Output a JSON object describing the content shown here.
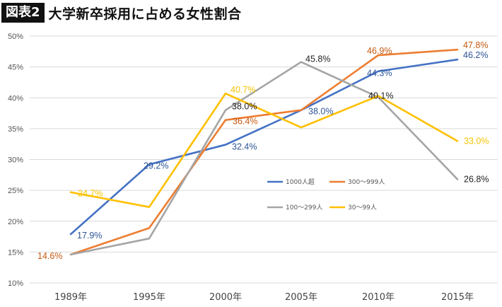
{
  "header": {
    "badge": "図表2",
    "title": "大学新卒採用に占める女性割合"
  },
  "chart_data": {
    "type": "line",
    "title": "大学新卒採用に占める女性割合",
    "categories": [
      "1989年",
      "1995年",
      "2000年",
      "2005年",
      "2010年",
      "2015年"
    ],
    "ylim": [
      10,
      50
    ],
    "yticks": [
      "10%",
      "15%",
      "20%",
      "25%",
      "30%",
      "35%",
      "40%",
      "45%",
      "50%"
    ],
    "grid": true,
    "legend_position": "center-right",
    "series": [
      {
        "name": "1000人超",
        "color": "#4472C4",
        "values": [
          17.9,
          29.2,
          32.4,
          38.0,
          44.3,
          46.2
        ],
        "labels": [
          "17.9%",
          "29.2%",
          "32.4%",
          "38.0%",
          "44.3%",
          "46.2%"
        ]
      },
      {
        "name": "300〜999人",
        "color": "#ED7D31",
        "values": [
          14.6,
          18.9,
          36.4,
          38.0,
          46.9,
          47.8
        ],
        "labels": [
          "14.6%",
          "",
          "36.4%",
          "",
          "46.9%",
          "47.8%"
        ]
      },
      {
        "name": "100〜299人",
        "color": "#A5A5A5",
        "values": [
          14.6,
          17.2,
          38.0,
          45.8,
          40.1,
          26.8
        ],
        "labels": [
          "",
          "",
          "38.0%",
          "45.8%",
          "40.1%",
          "26.8%"
        ]
      },
      {
        "name": "30〜99人",
        "color": "#FFC000",
        "values": [
          24.7,
          22.3,
          40.7,
          35.2,
          40.3,
          33.0
        ],
        "labels": [
          "24.7%",
          "",
          "40.7%",
          "",
          "",
          "33.0%"
        ]
      }
    ]
  }
}
